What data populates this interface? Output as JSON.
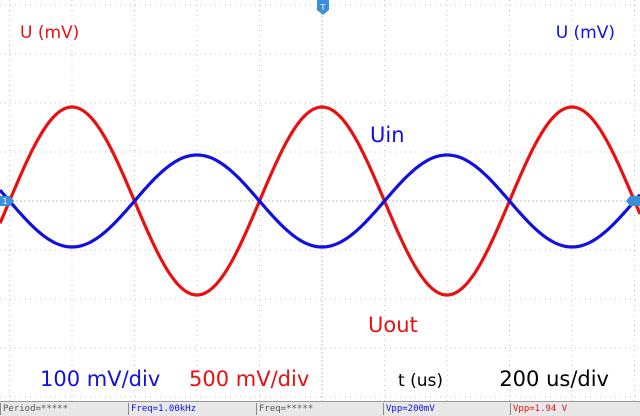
{
  "colors": {
    "ch_in": "#1010e0",
    "ch_out": "#e81010",
    "grid": "#c4c4c4",
    "text": "#000000",
    "meas_bg": "#e8e8e8"
  },
  "chart_data": {
    "type": "line",
    "xlabel": "t (us)",
    "ylabel_left": "U (mV)",
    "ylabel_right": "U (mV)",
    "timebase": "200 us/div",
    "channels": [
      {
        "name": "Uin",
        "scale": "100 mV/div",
        "frequency_hz": 1000,
        "amplitude_mv": 100,
        "phase_deg": 180,
        "color": "#1010e0"
      },
      {
        "name": "Uout",
        "scale": "500 mV/div",
        "frequency_hz": 1000,
        "amplitude_mv": 970,
        "phase_deg": 0,
        "color": "#e81010"
      }
    ],
    "xlim_us": [
      0,
      2000
    ],
    "grid": true
  },
  "labels": {
    "uin": "Uin",
    "uout": "Uout",
    "left_axis": "U (mV)",
    "right_axis": "U (mV)",
    "scale_in": "100 mV/div",
    "scale_out": "500 mV/div",
    "t_axis": "t (us)",
    "timebase": "200 us/div",
    "trigger_marker": "T",
    "ch1_marker": "1"
  },
  "measurements": [
    {
      "text": "Period=*****",
      "color": "#555555"
    },
    {
      "text": "Freq=1.00kHz",
      "color": "#1010e0"
    },
    {
      "text": "Freq=*****",
      "color": "#555555"
    },
    {
      "text": "Vpp=200mV",
      "color": "#1010e0"
    },
    {
      "text": "Vpp=1.94 V",
      "color": "#e81010"
    }
  ]
}
